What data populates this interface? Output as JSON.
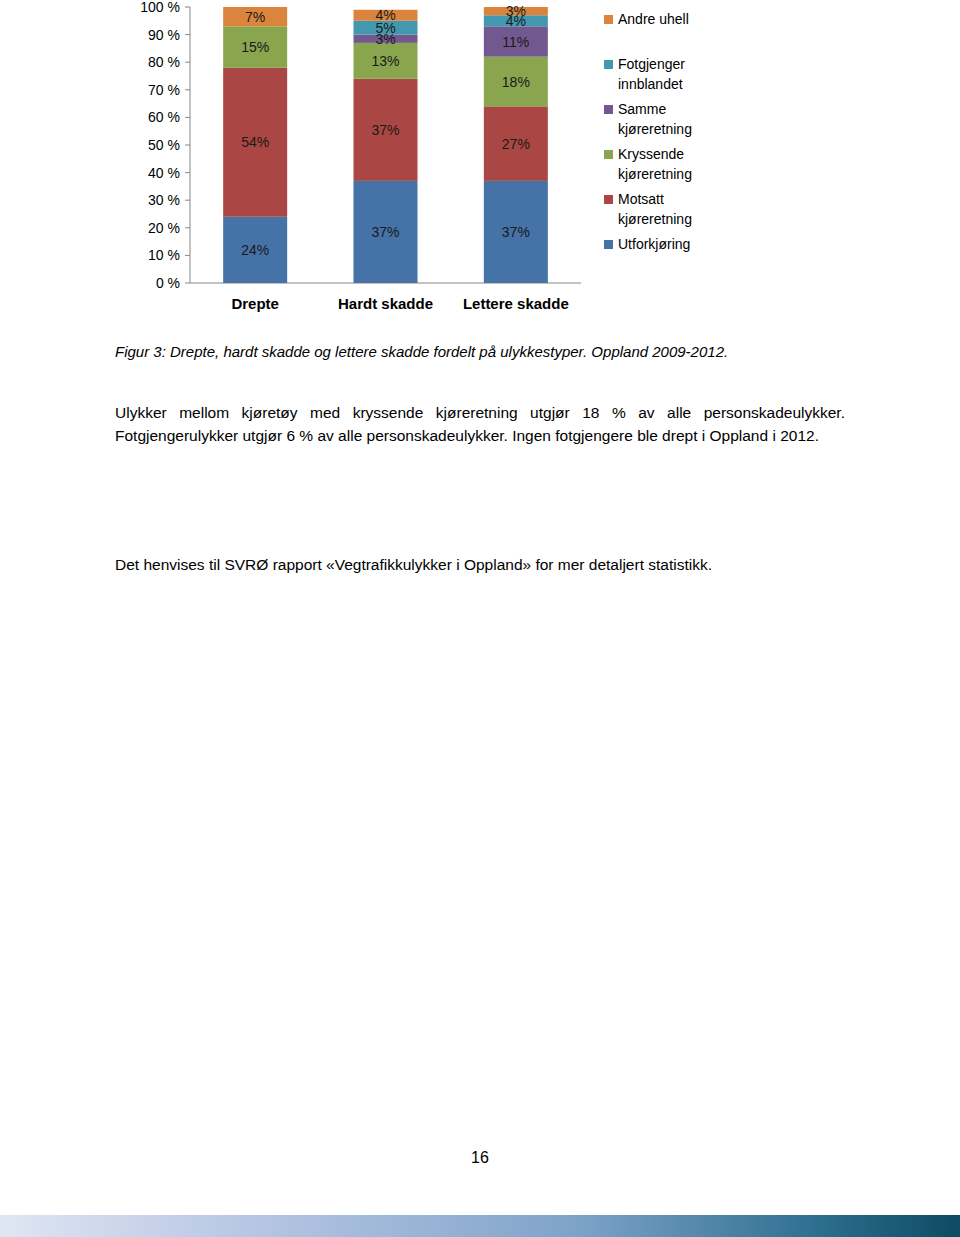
{
  "chart_data": {
    "type": "bar",
    "stacked": true,
    "data_labels": true,
    "legend": "right",
    "grid": false,
    "categories": [
      "Drepte",
      "Hardt skadde",
      "Lettere skadde"
    ],
    "ylim": [
      0,
      100
    ],
    "yticks": [
      {
        "value": 0,
        "label": "0 %"
      },
      {
        "value": 10,
        "label": "10 %"
      },
      {
        "value": 20,
        "label": "20 %"
      },
      {
        "value": 30,
        "label": "30 %"
      },
      {
        "value": 40,
        "label": "40 %"
      },
      {
        "value": 50,
        "label": "50 %"
      },
      {
        "value": 60,
        "label": "60 %"
      },
      {
        "value": 70,
        "label": "70 %"
      },
      {
        "value": 80,
        "label": "80 %"
      },
      {
        "value": 90,
        "label": "90 %"
      },
      {
        "value": 100,
        "label": "100 %"
      }
    ],
    "series": [
      {
        "name": "Utforkjøring",
        "color": "#4572a7",
        "values": [
          24,
          37,
          37
        ],
        "value_labels": [
          "24%",
          "37%",
          "37%"
        ]
      },
      {
        "name": "Motsatt kjøreretning",
        "color": "#aa4643",
        "values": [
          54,
          37,
          27
        ],
        "value_labels": [
          "54%",
          "37%",
          "27%"
        ]
      },
      {
        "name": "Kryssende kjøreretning",
        "color": "#89a54e",
        "values": [
          15,
          13,
          18
        ],
        "value_labels": [
          "15%",
          "13%",
          "18%"
        ]
      },
      {
        "name": "Samme kjøreretning",
        "color": "#71588f",
        "values": [
          null,
          3,
          11
        ],
        "value_labels": [
          null,
          "3%",
          "11%"
        ]
      },
      {
        "name": "Fotgjenger innblandet",
        "color": "#4198af",
        "values": [
          null,
          5,
          4
        ],
        "value_labels": [
          null,
          "5%",
          "4%"
        ]
      },
      {
        "name": "Andre uhell",
        "color": "#db843d",
        "values": [
          7,
          4,
          3
        ],
        "value_labels": [
          "7%",
          "4%",
          "3%"
        ]
      }
    ]
  },
  "document": {
    "caption": "Figur 3: Drepte, hardt skadde og lettere skadde fordelt på ulykkestyper. Oppland 2009-2012.",
    "paragraphs": [
      "Ulykker mellom kjøretøy med kryssende kjøreretning utgjør 18 % av alle personskadeulykker. Fotgjengerulykker utgjør 6 % av alle personskadeulykker. Ingen fotgjengere ble drept i Oppland i 2012.",
      "Det henvises til SVRØ rapport «Vegtrafikkulykker i Oppland» for mer detaljert statistikk."
    ],
    "page_number": "16"
  }
}
